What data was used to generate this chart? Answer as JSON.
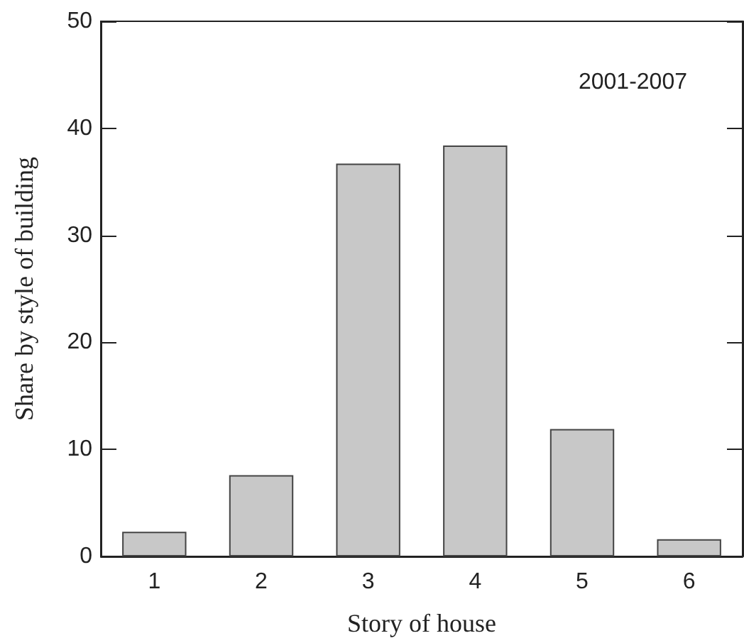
{
  "chart_data": {
    "type": "bar",
    "xlabel": "Story of house",
    "ylabel": "Share by style of building",
    "categories": [
      "1",
      "2",
      "3",
      "4",
      "5",
      "6"
    ],
    "values": [
      2.3,
      7.6,
      36.7,
      38.4,
      11.9,
      1.6
    ],
    "color": "#c8c8c8",
    "ylim": [
      0,
      50
    ],
    "yticks": [
      0,
      10,
      20,
      30,
      40,
      50
    ],
    "annotations": [
      "2001-2007"
    ],
    "grid": false
  }
}
